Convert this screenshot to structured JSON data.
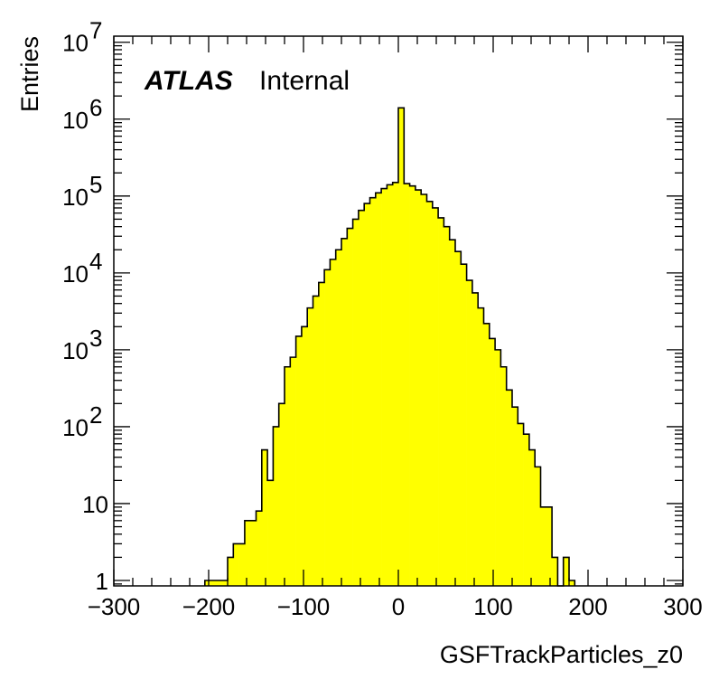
{
  "chart_data": {
    "type": "bar",
    "title": "",
    "xlabel": "GSFTrackParticles_z0",
    "ylabel": "Entries",
    "log_y": true,
    "xlim": [
      -300,
      300
    ],
    "ylim": [
      0.85,
      12000000
    ],
    "grid": false,
    "legend": "none",
    "fill_color": "#ffff00",
    "line_color": "#000000",
    "annotation": {
      "bold": "ATLAS",
      "text": "Internal"
    },
    "x_ticks": [
      -300,
      -200,
      -100,
      0,
      100,
      200,
      300
    ],
    "x_tick_labels": [
      "−300",
      "−200",
      "−100",
      "0",
      "100",
      "200",
      "300"
    ],
    "y_ticks": [
      1,
      10,
      100,
      1000,
      10000,
      100000,
      1000000,
      10000000
    ],
    "y_tick_labels": [
      {
        "base": "1",
        "exp": ""
      },
      {
        "base": "10",
        "exp": ""
      },
      {
        "base": "10",
        "exp": "2"
      },
      {
        "base": "10",
        "exp": "3"
      },
      {
        "base": "10",
        "exp": "4"
      },
      {
        "base": "10",
        "exp": "5"
      },
      {
        "base": "10",
        "exp": "6"
      },
      {
        "base": "10",
        "exp": "7"
      }
    ],
    "bin_width": 6,
    "bins": [
      {
        "x": -201,
        "y": 1
      },
      {
        "x": -195,
        "y": 1
      },
      {
        "x": -189,
        "y": 1
      },
      {
        "x": -183,
        "y": 1
      },
      {
        "x": -177,
        "y": 2
      },
      {
        "x": -171,
        "y": 3
      },
      {
        "x": -165,
        "y": 3
      },
      {
        "x": -159,
        "y": 6
      },
      {
        "x": -153,
        "y": 6
      },
      {
        "x": -147,
        "y": 8
      },
      {
        "x": -141,
        "y": 50
      },
      {
        "x": -135,
        "y": 20
      },
      {
        "x": -129,
        "y": 100
      },
      {
        "x": -123,
        "y": 200
      },
      {
        "x": -117,
        "y": 600
      },
      {
        "x": -111,
        "y": 800
      },
      {
        "x": -105,
        "y": 1500
      },
      {
        "x": -99,
        "y": 2000
      },
      {
        "x": -93,
        "y": 3500
      },
      {
        "x": -87,
        "y": 5000
      },
      {
        "x": -81,
        "y": 7500
      },
      {
        "x": -75,
        "y": 11000
      },
      {
        "x": -69,
        "y": 15000
      },
      {
        "x": -63,
        "y": 20000
      },
      {
        "x": -57,
        "y": 28000
      },
      {
        "x": -51,
        "y": 38000
      },
      {
        "x": -45,
        "y": 50000
      },
      {
        "x": -39,
        "y": 65000
      },
      {
        "x": -33,
        "y": 80000
      },
      {
        "x": -27,
        "y": 95000
      },
      {
        "x": -21,
        "y": 110000
      },
      {
        "x": -15,
        "y": 125000
      },
      {
        "x": -9,
        "y": 140000
      },
      {
        "x": -3,
        "y": 150000
      },
      {
        "x": 3,
        "y": 1400000
      },
      {
        "x": 9,
        "y": 145000
      },
      {
        "x": 15,
        "y": 135000
      },
      {
        "x": 21,
        "y": 120000
      },
      {
        "x": 27,
        "y": 105000
      },
      {
        "x": 33,
        "y": 85000
      },
      {
        "x": 39,
        "y": 70000
      },
      {
        "x": 45,
        "y": 52000
      },
      {
        "x": 51,
        "y": 40000
      },
      {
        "x": 57,
        "y": 27000
      },
      {
        "x": 63,
        "y": 19000
      },
      {
        "x": 69,
        "y": 13000
      },
      {
        "x": 75,
        "y": 8000
      },
      {
        "x": 81,
        "y": 5500
      },
      {
        "x": 87,
        "y": 3500
      },
      {
        "x": 93,
        "y": 2200
      },
      {
        "x": 99,
        "y": 1400
      },
      {
        "x": 105,
        "y": 1000
      },
      {
        "x": 111,
        "y": 600
      },
      {
        "x": 117,
        "y": 300
      },
      {
        "x": 123,
        "y": 180
      },
      {
        "x": 129,
        "y": 110
      },
      {
        "x": 135,
        "y": 80
      },
      {
        "x": 141,
        "y": 50
      },
      {
        "x": 147,
        "y": 30
      },
      {
        "x": 153,
        "y": 9
      },
      {
        "x": 159,
        "y": 9
      },
      {
        "x": 165,
        "y": 2
      },
      {
        "x": 171,
        "y": 0
      },
      {
        "x": 177,
        "y": 2
      },
      {
        "x": 183,
        "y": 1
      }
    ]
  }
}
